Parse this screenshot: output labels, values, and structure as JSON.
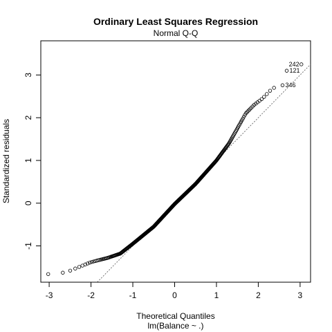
{
  "chart_data": {
    "type": "scatter",
    "title": "Ordinary Least Squares Regression",
    "subtitle": "Normal Q-Q",
    "xlabel": "Theoretical Quantiles",
    "xlabel2": "lm(Balance ~ .)",
    "ylabel": "Standardized residuals",
    "xlim": [
      -3.2,
      3.25
    ],
    "ylim": [
      -1.85,
      3.8
    ],
    "x_ticks": [
      -3,
      -2,
      -1,
      0,
      1,
      2,
      3
    ],
    "y_ticks": [
      -1,
      0,
      1,
      2,
      3
    ],
    "x_tick_labels": [
      "-3",
      "-2",
      "-1",
      "0",
      "1",
      "2",
      "3"
    ],
    "y_tick_labels": [
      "-1",
      "0",
      "1",
      "2",
      "3"
    ],
    "reference_line": {
      "style": "dotted",
      "intercept": 0.0,
      "slope": 1.0
    },
    "n_points": 400,
    "curve": [
      [
        -3.0,
        -1.66
      ],
      [
        -2.6,
        -1.62
      ],
      [
        -2.3,
        -1.5
      ],
      [
        -2.0,
        -1.38
      ],
      [
        -1.6,
        -1.28
      ],
      [
        -1.3,
        -1.18
      ],
      [
        -1.0,
        -0.95
      ],
      [
        -0.5,
        -0.55
      ],
      [
        0.0,
        -0.02
      ],
      [
        0.5,
        0.45
      ],
      [
        1.0,
        1.0
      ],
      [
        1.3,
        1.4
      ],
      [
        1.5,
        1.75
      ],
      [
        1.7,
        2.1
      ],
      [
        1.9,
        2.3
      ],
      [
        2.1,
        2.45
      ],
      [
        2.3,
        2.65
      ],
      [
        2.5,
        2.78
      ]
    ],
    "top_points": [
      {
        "x": 2.68,
        "y": 3.1,
        "label": "121"
      },
      {
        "x": 3.03,
        "y": 3.25,
        "label": "242"
      },
      {
        "x": 2.58,
        "y": 2.76,
        "label": "346"
      }
    ]
  }
}
